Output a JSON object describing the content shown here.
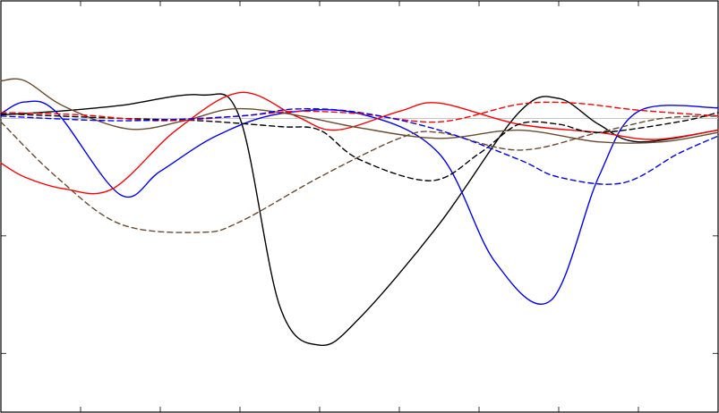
{
  "chart_data": {
    "type": "line",
    "title": "",
    "xlabel": "",
    "ylabel": "",
    "xlim": [
      0,
      9
    ],
    "ylim": [
      -2.5,
      1
    ],
    "xticks": [
      1,
      2,
      3,
      4,
      5,
      6,
      7,
      8
    ],
    "yticks": [
      -2,
      -1
    ],
    "grid": false,
    "legend": "none",
    "baseline_y": 0,
    "series": [
      {
        "color": "#000000",
        "dash": "solid",
        "points": [
          [
            0,
            0.03
          ],
          [
            0.7,
            0.06
          ],
          [
            1.5,
            0.11
          ],
          [
            2.5,
            0.2
          ],
          [
            3.0,
            0.0
          ],
          [
            3.5,
            -1.6
          ],
          [
            4.0,
            -1.93
          ],
          [
            4.5,
            -1.7
          ],
          [
            5.5,
            -0.9
          ],
          [
            6.5,
            0.05
          ],
          [
            7.0,
            0.17
          ],
          [
            7.5,
            -0.05
          ],
          [
            8.0,
            -0.2
          ],
          [
            9.0,
            -0.1
          ]
        ]
      },
      {
        "color": "#0000ff",
        "dash": "solid",
        "points": [
          [
            0,
            0.04
          ],
          [
            0.3,
            0.14
          ],
          [
            0.7,
            0.05
          ],
          [
            1.5,
            -0.65
          ],
          [
            2.0,
            -0.45
          ],
          [
            2.7,
            -0.15
          ],
          [
            3.5,
            0.04
          ],
          [
            4.5,
            0.04
          ],
          [
            5.5,
            -0.3
          ],
          [
            6.2,
            -1.22
          ],
          [
            6.9,
            -1.55
          ],
          [
            7.5,
            -0.5
          ],
          [
            8.0,
            0.06
          ],
          [
            9.0,
            0.09
          ]
        ]
      },
      {
        "color": "#ff0000",
        "dash": "solid",
        "points": [
          [
            0,
            -0.38
          ],
          [
            0.3,
            -0.5
          ],
          [
            0.8,
            -0.6
          ],
          [
            1.4,
            -0.6
          ],
          [
            2.2,
            -0.1
          ],
          [
            3.0,
            0.22
          ],
          [
            3.7,
            0.02
          ],
          [
            4.2,
            -0.1
          ],
          [
            5.0,
            0.06
          ],
          [
            5.5,
            0.13
          ],
          [
            6.5,
            -0.05
          ],
          [
            7.5,
            -0.12
          ],
          [
            8.2,
            -0.18
          ],
          [
            9.0,
            -0.1
          ]
        ]
      },
      {
        "color": "#6b4a2e",
        "dash": "solid",
        "points": [
          [
            0,
            0.32
          ],
          [
            0.3,
            0.32
          ],
          [
            0.8,
            0.1
          ],
          [
            1.6,
            -0.09
          ],
          [
            2.3,
            -0.02
          ],
          [
            2.9,
            0.08
          ],
          [
            3.6,
            0.04
          ],
          [
            4.5,
            -0.08
          ],
          [
            5.5,
            -0.17
          ],
          [
            6.5,
            -0.1
          ],
          [
            7.5,
            -0.2
          ],
          [
            8.3,
            -0.2
          ],
          [
            9.0,
            -0.12
          ]
        ]
      },
      {
        "color": "#6b4a2e",
        "dash": "dashed",
        "points": [
          [
            0,
            -0.03
          ],
          [
            0.7,
            -0.5
          ],
          [
            1.5,
            -0.9
          ],
          [
            2.5,
            -0.97
          ],
          [
            3.0,
            -0.88
          ],
          [
            4.0,
            -0.5
          ],
          [
            5.0,
            -0.17
          ],
          [
            5.5,
            -0.12
          ],
          [
            6.5,
            -0.27
          ],
          [
            7.5,
            -0.12
          ],
          [
            8.3,
            0.0
          ],
          [
            9.0,
            0.02
          ]
        ]
      },
      {
        "color": "#000000",
        "dash": "dashed",
        "points": [
          [
            0,
            0.04
          ],
          [
            1.5,
            0.0
          ],
          [
            2.5,
            -0.02
          ],
          [
            3.5,
            -0.07
          ],
          [
            4.0,
            -0.1
          ],
          [
            4.5,
            -0.35
          ],
          [
            5.4,
            -0.53
          ],
          [
            6.0,
            -0.3
          ],
          [
            6.5,
            -0.05
          ],
          [
            7.0,
            -0.05
          ],
          [
            7.5,
            -0.12
          ],
          [
            8.5,
            -0.03
          ],
          [
            9.0,
            0.05
          ]
        ]
      },
      {
        "color": "#ff0000",
        "dash": "dashed",
        "points": [
          [
            0,
            0.05
          ],
          [
            1.0,
            0.03
          ],
          [
            2.0,
            -0.02
          ],
          [
            3.0,
            0.02
          ],
          [
            3.7,
            0.06
          ],
          [
            4.5,
            0.04
          ],
          [
            5.5,
            -0.03
          ],
          [
            6.5,
            0.12
          ],
          [
            7.2,
            0.13
          ],
          [
            8.0,
            0.07
          ],
          [
            9.0,
            0.02
          ]
        ]
      },
      {
        "color": "#0000ff",
        "dash": "dashed",
        "points": [
          [
            0,
            0.02
          ],
          [
            1.5,
            -0.02
          ],
          [
            3.0,
            0.02
          ],
          [
            3.7,
            0.08
          ],
          [
            4.5,
            0.05
          ],
          [
            5.5,
            -0.1
          ],
          [
            6.5,
            -0.35
          ],
          [
            7.0,
            -0.5
          ],
          [
            7.8,
            -0.55
          ],
          [
            8.5,
            -0.3
          ],
          [
            9.0,
            -0.15
          ]
        ]
      }
    ]
  }
}
